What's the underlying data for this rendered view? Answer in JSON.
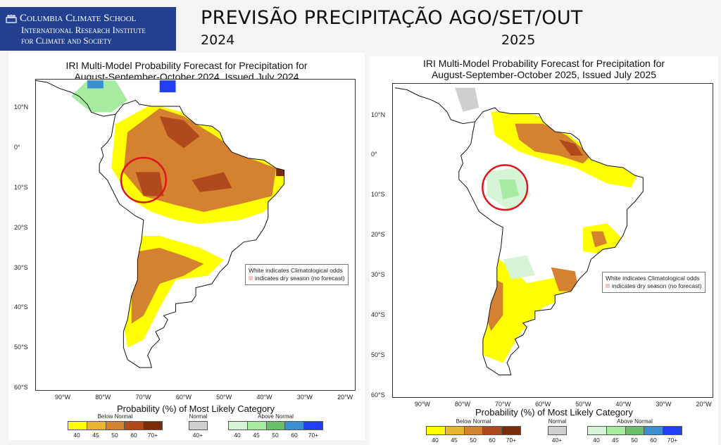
{
  "header": {
    "logo_line1": "Columbia Climate School",
    "logo_line2": "International Research Institute",
    "logo_line3": "for Climate and Society",
    "title": "PREVISÃO PRECIPITAÇÃO AGO/SET/OUT"
  },
  "panels": [
    {
      "year_label": "2024",
      "title_line1": "IRI Multi-Model Probability Forecast for Precipitation for",
      "title_line2": "August-September-October 2024, Issued July 2024",
      "highlight": "red circle over western Amazon (below normal)"
    },
    {
      "year_label": "2025",
      "title_line1": "IRI Multi-Model Probability Forecast for Precipitation for",
      "title_line2": "August-September-October 2025, Issued July 2025",
      "highlight": "red circle over western Amazon (above normal)"
    }
  ],
  "axes": {
    "lat_ticks": [
      "10°N",
      "0°",
      "10°S",
      "20°S",
      "30°S",
      "40°S",
      "50°S",
      "60°S"
    ],
    "lon_ticks": [
      "90°W",
      "80°W",
      "70°W",
      "60°W",
      "50°W",
      "40°W",
      "30°W",
      "20°W"
    ]
  },
  "note": {
    "line1": "White indicates Climatological odds",
    "line2": "indicates dry season (no forecast)"
  },
  "legend": {
    "title": "Probability (%) of Most Likely Category",
    "below_label": "Below Normal",
    "normal_label": "Normal",
    "above_label": "Above Normal",
    "below_ticks": [
      "40",
      "45",
      "50",
      "60",
      "70+"
    ],
    "normal_tick": "40+",
    "above_ticks": [
      "40",
      "45",
      "50",
      "60",
      "70+"
    ],
    "below_colors": [
      "#ffff00",
      "#e8b631",
      "#d4822f",
      "#b04a1d",
      "#7a2e08"
    ],
    "normal_color": "#cfcfcf",
    "above_colors": [
      "#d6f5d6",
      "#a6eba0",
      "#6abf69",
      "#3a8fd0",
      "#1f3ff0"
    ],
    "circle_color": "#e0141c"
  }
}
